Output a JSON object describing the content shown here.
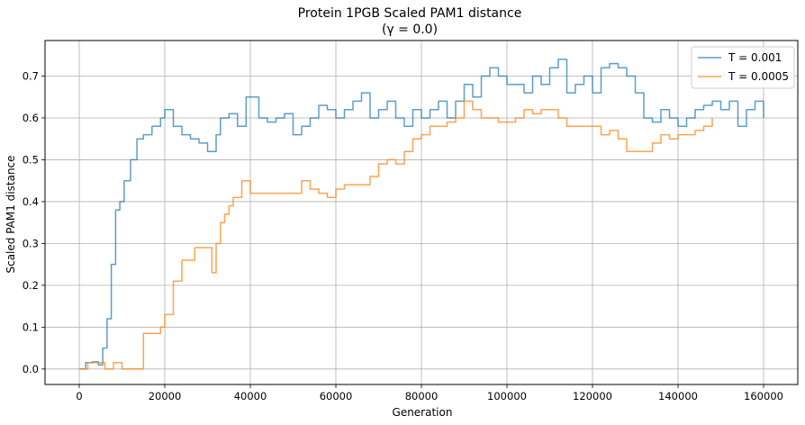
{
  "chart_data": {
    "type": "line",
    "title": "Protein 1PGB Scaled PAM1 distance",
    "subtitle": "(γ = 0.0)",
    "xlabel": "Generation",
    "ylabel": "Scaled PAM1 distance",
    "xlim": [
      -8000,
      168000
    ],
    "ylim": [
      -0.037,
      0.785
    ],
    "xticks": [
      0,
      20000,
      40000,
      60000,
      80000,
      100000,
      120000,
      140000,
      160000
    ],
    "xtick_labels": [
      "0",
      "20000",
      "40000",
      "60000",
      "80000",
      "100000",
      "120000",
      "140000",
      "160000"
    ],
    "yticks": [
      0.0,
      0.1,
      0.2,
      0.3,
      0.4,
      0.5,
      0.6,
      0.7
    ],
    "ytick_labels": [
      "0.0",
      "0.1",
      "0.2",
      "0.3",
      "0.4",
      "0.5",
      "0.6",
      "0.7"
    ],
    "grid": true,
    "legend_position": "top-right",
    "series": [
      {
        "name": "T = 0.001",
        "color": "#1f77b4",
        "x": [
          0,
          1500,
          3000,
          4500,
          5500,
          6500,
          7500,
          8500,
          9500,
          10500,
          12000,
          13500,
          15000,
          17000,
          19000,
          20000,
          22000,
          24000,
          26000,
          28000,
          30000,
          32000,
          33000,
          35000,
          37000,
          39000,
          42000,
          44000,
          46000,
          48000,
          50000,
          52000,
          54000,
          56000,
          58000,
          60000,
          62000,
          64000,
          66000,
          68000,
          70000,
          72000,
          74000,
          76000,
          78000,
          80000,
          82000,
          84000,
          86000,
          88000,
          90000,
          92000,
          94000,
          96000,
          98000,
          100000,
          102000,
          104000,
          106000,
          108000,
          110000,
          112000,
          114000,
          116000,
          118000,
          120000,
          122000,
          124000,
          126000,
          128000,
          130000,
          132000,
          134000,
          136000,
          138000,
          140000,
          142000,
          144000,
          146000,
          148000,
          150000,
          152000,
          154000,
          156000,
          158000,
          160000
        ],
        "values": [
          0.0,
          0.015,
          0.017,
          0.01,
          0.05,
          0.12,
          0.25,
          0.38,
          0.4,
          0.45,
          0.5,
          0.55,
          0.56,
          0.58,
          0.6,
          0.62,
          0.58,
          0.56,
          0.55,
          0.54,
          0.52,
          0.56,
          0.6,
          0.61,
          0.58,
          0.65,
          0.6,
          0.59,
          0.6,
          0.61,
          0.56,
          0.58,
          0.6,
          0.63,
          0.62,
          0.6,
          0.62,
          0.64,
          0.66,
          0.6,
          0.62,
          0.64,
          0.6,
          0.58,
          0.62,
          0.6,
          0.62,
          0.64,
          0.6,
          0.64,
          0.68,
          0.65,
          0.7,
          0.72,
          0.7,
          0.68,
          0.68,
          0.66,
          0.7,
          0.68,
          0.72,
          0.74,
          0.66,
          0.68,
          0.7,
          0.66,
          0.72,
          0.73,
          0.72,
          0.7,
          0.66,
          0.6,
          0.59,
          0.62,
          0.6,
          0.58,
          0.6,
          0.62,
          0.63,
          0.64,
          0.62,
          0.64,
          0.58,
          0.62,
          0.64,
          0.6
        ]
      },
      {
        "name": "T = 0.0005",
        "color": "#ff7f0e",
        "x": [
          0,
          2000,
          4000,
          6000,
          8000,
          10000,
          12000,
          14000,
          15000,
          18000,
          19000,
          20000,
          22000,
          24000,
          27000,
          30000,
          31000,
          32000,
          33000,
          34000,
          35000,
          36000,
          38000,
          40000,
          42000,
          46000,
          50000,
          52000,
          54000,
          56000,
          58000,
          60000,
          62000,
          64000,
          66000,
          68000,
          70000,
          72000,
          74000,
          76000,
          78000,
          80000,
          82000,
          84000,
          86000,
          88000,
          90000,
          92000,
          94000,
          96000,
          98000,
          100000,
          102000,
          104000,
          106000,
          108000,
          110000,
          112000,
          114000,
          116000,
          118000,
          120000,
          122000,
          124000,
          126000,
          128000,
          130000,
          132000,
          134000,
          136000,
          138000,
          140000,
          142000,
          144000,
          146000,
          148000
        ],
        "values": [
          0.0,
          0.015,
          0.015,
          0.0,
          0.015,
          0.0,
          0.0,
          0.0,
          0.085,
          0.085,
          0.1,
          0.13,
          0.21,
          0.26,
          0.29,
          0.29,
          0.23,
          0.3,
          0.35,
          0.37,
          0.39,
          0.41,
          0.45,
          0.42,
          0.42,
          0.42,
          0.42,
          0.45,
          0.43,
          0.42,
          0.41,
          0.43,
          0.44,
          0.44,
          0.44,
          0.46,
          0.49,
          0.5,
          0.49,
          0.52,
          0.55,
          0.56,
          0.58,
          0.58,
          0.59,
          0.6,
          0.64,
          0.62,
          0.6,
          0.6,
          0.59,
          0.59,
          0.6,
          0.62,
          0.61,
          0.62,
          0.62,
          0.6,
          0.58,
          0.58,
          0.58,
          0.58,
          0.56,
          0.57,
          0.55,
          0.52,
          0.52,
          0.52,
          0.54,
          0.56,
          0.55,
          0.56,
          0.56,
          0.57,
          0.58,
          0.6
        ]
      }
    ]
  }
}
